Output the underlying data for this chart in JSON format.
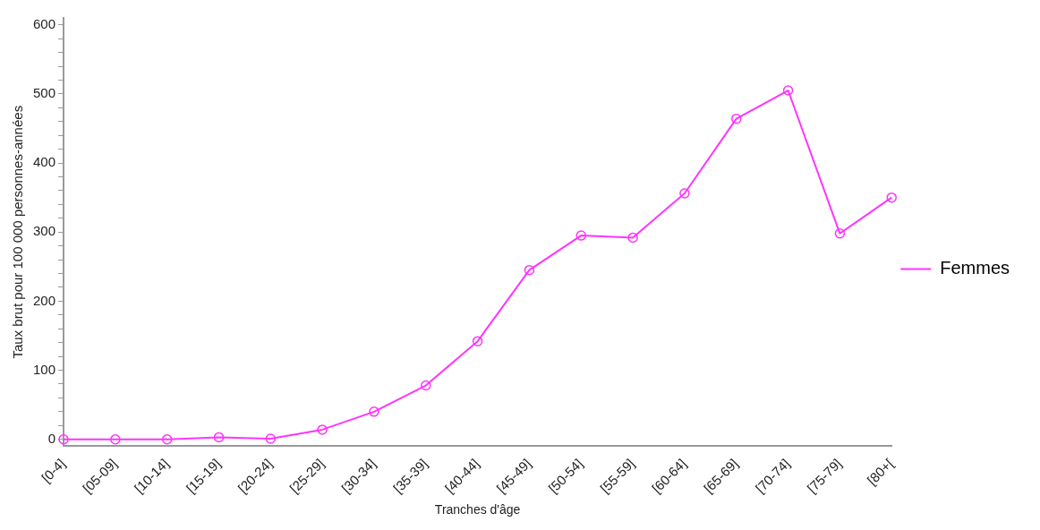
{
  "chart_data": {
    "type": "line",
    "xlabel": "Tranches d'âge",
    "ylabel": "Taux brut pour 100 000 personnes-années",
    "categories": [
      "[0-4]",
      "[05-09]",
      "[10-14]",
      "[15-19]",
      "[20-24]",
      "[25-29]",
      "[30-34]",
      "[35-39]",
      "[40-44]",
      "[45-49]",
      "[50-54]",
      "[55-59]",
      "[60-64]",
      "[65-69]",
      "[70-74]",
      "[75-79]",
      "[80+["
    ],
    "series": [
      {
        "name": "Femmes",
        "color": "#ff33ff",
        "values": [
          0,
          0,
          0,
          3,
          1,
          14,
          40,
          78,
          142,
          245,
          295,
          292,
          356,
          464,
          505,
          298,
          350
        ]
      }
    ],
    "ylim": [
      -10,
      610
    ],
    "yticks": [
      0,
      {
        "value": 20,
        "label": null
      },
      {
        "value": 40,
        "label": null
      },
      {
        "value": 60,
        "label": null
      },
      {
        "value": 80,
        "label": null
      },
      100,
      {
        "value": 120,
        "label": null
      },
      {
        "value": 140,
        "label": null
      },
      {
        "value": 160,
        "label": null
      },
      {
        "value": 180,
        "label": null
      },
      200,
      {
        "value": 220,
        "label": null
      },
      {
        "value": 240,
        "label": null
      },
      {
        "value": 260,
        "label": null
      },
      {
        "value": 280,
        "label": null
      },
      300,
      {
        "value": 320,
        "label": null
      },
      {
        "value": 340,
        "label": null
      },
      {
        "value": 360,
        "label": null
      },
      {
        "value": 380,
        "label": null
      },
      400,
      {
        "value": 420,
        "label": null
      },
      {
        "value": 440,
        "label": null
      },
      {
        "value": 460,
        "label": null
      },
      {
        "value": 480,
        "label": null
      },
      500,
      {
        "value": 520,
        "label": null
      },
      {
        "value": 540,
        "label": null
      },
      {
        "value": 560,
        "label": null
      },
      {
        "value": 580,
        "label": null
      },
      600
    ],
    "grid": false,
    "legend": "right",
    "marker": "circle",
    "line_style": "solid"
  }
}
